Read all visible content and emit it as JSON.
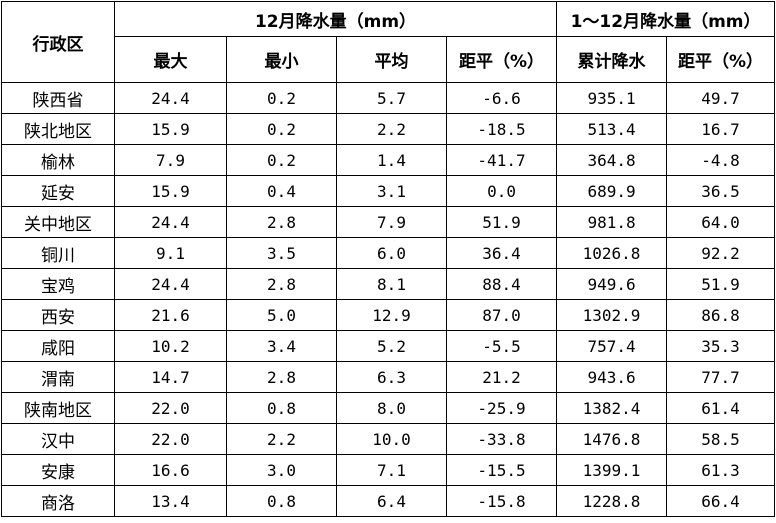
{
  "table": {
    "header": {
      "region": "行政区",
      "group_dec": "12月降水量（mm）",
      "group_year": "1～12月降水量（mm）",
      "cols": [
        "最大",
        "最小",
        "平均",
        "距平（%）",
        "累计降水",
        "距平（%）"
      ]
    },
    "rows": [
      {
        "region": "陕西省",
        "max": "24.4",
        "min": "0.2",
        "avg": "5.7",
        "dec_anom": "-6.6",
        "total": "935.1",
        "year_anom": "49.7"
      },
      {
        "region": "陕北地区",
        "max": "15.9",
        "min": "0.2",
        "avg": "2.2",
        "dec_anom": "-18.5",
        "total": "513.4",
        "year_anom": "16.7"
      },
      {
        "region": "榆林",
        "max": "7.9",
        "min": "0.2",
        "avg": "1.4",
        "dec_anom": "-41.7",
        "total": "364.8",
        "year_anom": "-4.8"
      },
      {
        "region": "延安",
        "max": "15.9",
        "min": "0.4",
        "avg": "3.1",
        "dec_anom": "0.0",
        "total": "689.9",
        "year_anom": "36.5"
      },
      {
        "region": "关中地区",
        "max": "24.4",
        "min": "2.8",
        "avg": "7.9",
        "dec_anom": "51.9",
        "total": "981.8",
        "year_anom": "64.0"
      },
      {
        "region": "铜川",
        "max": "9.1",
        "min": "3.5",
        "avg": "6.0",
        "dec_anom": "36.4",
        "total": "1026.8",
        "year_anom": "92.2"
      },
      {
        "region": "宝鸡",
        "max": "24.4",
        "min": "2.8",
        "avg": "8.1",
        "dec_anom": "88.4",
        "total": "949.6",
        "year_anom": "51.9"
      },
      {
        "region": "西安",
        "max": "21.6",
        "min": "5.0",
        "avg": "12.9",
        "dec_anom": "87.0",
        "total": "1302.9",
        "year_anom": "86.8"
      },
      {
        "region": "咸阳",
        "max": "10.2",
        "min": "3.4",
        "avg": "5.2",
        "dec_anom": "-5.5",
        "total": "757.4",
        "year_anom": "35.3"
      },
      {
        "region": "渭南",
        "max": "14.7",
        "min": "2.8",
        "avg": "6.3",
        "dec_anom": "21.2",
        "total": "943.6",
        "year_anom": "77.7"
      },
      {
        "region": "陕南地区",
        "max": "22.0",
        "min": "0.8",
        "avg": "8.0",
        "dec_anom": "-25.9",
        "total": "1382.4",
        "year_anom": "61.4"
      },
      {
        "region": "汉中",
        "max": "22.0",
        "min": "2.2",
        "avg": "10.0",
        "dec_anom": "-33.8",
        "total": "1476.8",
        "year_anom": "58.5"
      },
      {
        "region": "安康",
        "max": "16.6",
        "min": "3.0",
        "avg": "7.1",
        "dec_anom": "-15.5",
        "total": "1399.1",
        "year_anom": "61.3"
      },
      {
        "region": "商洛",
        "max": "13.4",
        "min": "0.8",
        "avg": "6.4",
        "dec_anom": "-15.8",
        "total": "1228.8",
        "year_anom": "66.4"
      }
    ]
  }
}
